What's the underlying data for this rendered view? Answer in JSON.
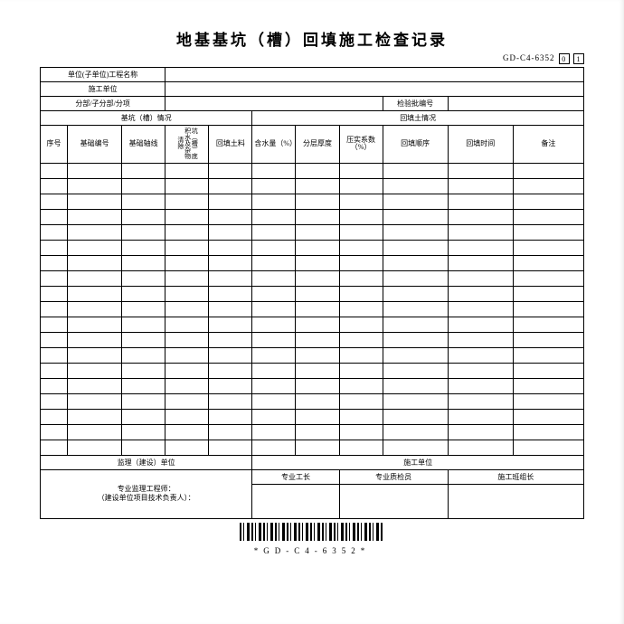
{
  "title": "地基基坑（槽）回填施工检查记录",
  "code_prefix": "GD-C4-6352",
  "code_boxes": [
    "0",
    "1"
  ],
  "header_rows": [
    {
      "label": "单位(子单位)工程名称",
      "extra_label": ""
    },
    {
      "label": "施工单位",
      "extra_label": ""
    },
    {
      "label": "分部/子分部/分项",
      "extra_label": "检验批编号"
    }
  ],
  "group_headers": {
    "left": "基坑（槽）情况",
    "right": "回填土情况"
  },
  "columns": [
    "序号",
    "基础编号",
    "基础轴线",
    "坑（槽）底积水及杂物清除",
    "回填土料",
    "含水量（%）",
    "分层厚度",
    "压实系数（%）",
    "回填顺序",
    "回填时间",
    "备注"
  ],
  "data_row_count": 19,
  "footer": {
    "supervise_label": "监理（建设）单位",
    "construct_label": "施工单位",
    "sub_labels": [
      "专业工长",
      "专业质检员",
      "施工班组长"
    ],
    "sign_text_l1": "专业监理工程师：",
    "sign_text_l2": "（建设单位项目技术负责人）："
  },
  "barcode_text": "*GD-C4-6352*"
}
